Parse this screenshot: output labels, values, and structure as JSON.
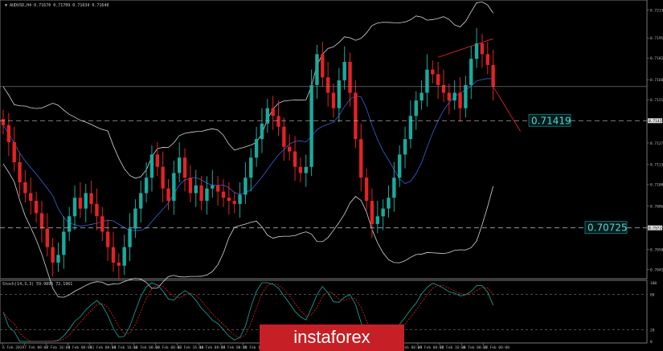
{
  "header": {
    "symbol": "AUDUSD,H4",
    "ohlc": "0.71670 0.71709 0.71634 0.71640"
  },
  "levels": [
    {
      "value": 0.71419,
      "label": "0.71419"
    },
    {
      "value": 0.70725,
      "label": "0.70725"
    }
  ],
  "current_price": 0.7164,
  "price_axis": {
    "min": 0.70406,
    "max": 0.7218,
    "ticks": [
      "0.72135",
      "0.71955",
      "0.71825",
      "0.71685",
      "0.71555",
      "0.71415",
      "0.71275",
      "0.71135",
      "0.71005",
      "0.70865",
      "0.70725",
      "0.70585",
      "0.70455"
    ]
  },
  "stoch": {
    "label": "Stoch(14,3,3) 59.9895 72.1961",
    "levels": [
      "100",
      "80",
      "20",
      "0"
    ]
  },
  "time_axis": [
    "6 Feb 2019",
    "7 Feb 08:00",
    "7 Feb 16:00",
    "8 Feb 08:00",
    "11 Feb 00:00",
    "11 Feb 16:00",
    "12 Feb 08:00",
    "13 Feb 00:00",
    "13 Feb 16:00",
    "14 Feb 08:00",
    "15 Feb 00:00",
    "15 Feb 16:00",
    "18 Feb 08:00",
    "19 Feb 00:00",
    "19 Feb 16:00",
    "20 Feb 08:00",
    "21 Feb 00:00",
    "21 Feb 16:00",
    "22 Feb 08:00",
    "25 Feb 00:00",
    "25 Feb 16:00",
    "26 Feb 08:00",
    "27 Feb 00:00"
  ],
  "logo": "instaforex",
  "colors": {
    "bull": "#1aaa9d",
    "bear": "#e32226",
    "bands": "#cfd6dc",
    "ma": "#3d5fd6",
    "stoch_main": "#1aaa9d",
    "stoch_signal": "#e32226",
    "trend": "#e32226"
  },
  "chart_data": {
    "type": "candlestick",
    "closes": [
      0.7139,
      0.7128,
      0.7115,
      0.7102,
      0.7095,
      0.709,
      0.7082,
      0.7072,
      0.706,
      0.705,
      0.7055,
      0.707,
      0.708,
      0.7092,
      0.7085,
      0.7095,
      0.7088,
      0.708,
      0.707,
      0.706,
      0.705,
      0.7048,
      0.706,
      0.7072,
      0.7085,
      0.7095,
      0.7105,
      0.712,
      0.7112,
      0.7098,
      0.709,
      0.7108,
      0.7118,
      0.7105,
      0.7095,
      0.71,
      0.709,
      0.7098,
      0.71,
      0.7096,
      0.7092,
      0.709,
      0.7088,
      0.7094,
      0.7105,
      0.7118,
      0.713,
      0.714,
      0.715,
      0.7145,
      0.7138,
      0.7125,
      0.7122,
      0.7112,
      0.7108,
      0.7112,
      0.7165,
      0.7185,
      0.717,
      0.716,
      0.715,
      0.7168,
      0.718,
      0.716,
      0.713,
      0.7105,
      0.709,
      0.7075,
      0.708,
      0.7085,
      0.7092,
      0.7105,
      0.712,
      0.713,
      0.7145,
      0.7155,
      0.716,
      0.7175,
      0.7172,
      0.7165,
      0.716,
      0.7155,
      0.716,
      0.715,
      0.7165,
      0.7182,
      0.7192,
      0.7185,
      0.7178,
      0.7164
    ],
    "bollinger_upper_start": 0.722,
    "bollinger_lower_end": 0.7105,
    "trend_line": [
      0.7183,
      0.7195
    ],
    "projection": [
      0.7164,
      0.7135
    ]
  }
}
